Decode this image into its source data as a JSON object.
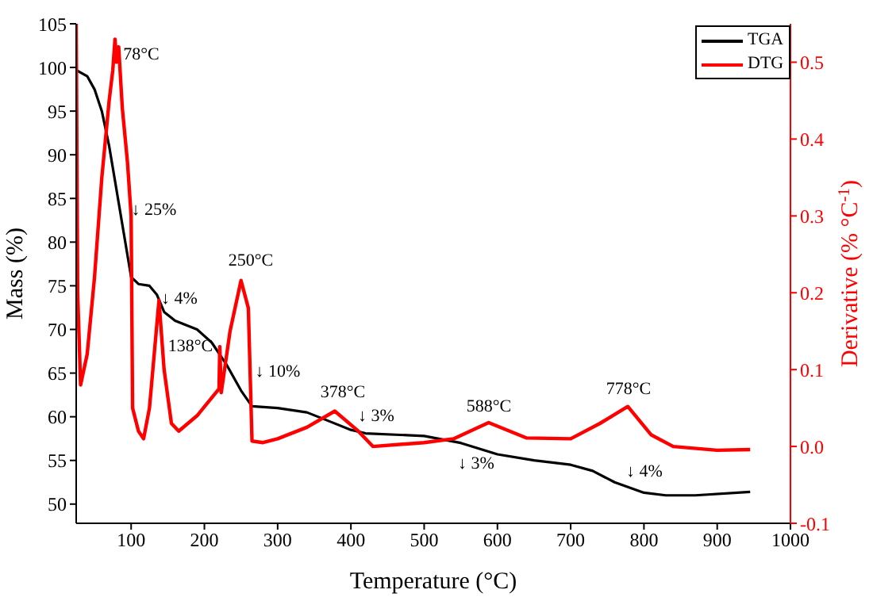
{
  "chart_data": {
    "type": "line",
    "xlabel": "Temperature (°C)",
    "ylabel": "Mass (%)",
    "y2label": "Derivative (% °C$^{-1}$)",
    "xlim": [
      25,
      1000
    ],
    "xticks": [
      100,
      200,
      300,
      400,
      500,
      600,
      700,
      800,
      900,
      1000
    ],
    "ylim": [
      47.8,
      105
    ],
    "yticks": [
      50,
      55,
      60,
      65,
      70,
      75,
      80,
      85,
      90,
      95,
      100,
      105
    ],
    "y2lim": [
      -0.1,
      0.55
    ],
    "y2ticks": [
      -0.1,
      {
        "value": 0,
        "label": "0.0"
      },
      0.1,
      0.2,
      0.3,
      0.4,
      0.5
    ],
    "legend": "top right",
    "grid": false,
    "marker": "none",
    "line_style": "solid",
    "series": [
      {
        "name": "TGA",
        "color": "#000000",
        "x": [
          25,
          40,
          50,
          60,
          70,
          80,
          90,
          100,
          110,
          125,
          135,
          145,
          160,
          190,
          210,
          230,
          250,
          265,
          300,
          340,
          370,
          400,
          420,
          500,
          550,
          600,
          650,
          700,
          730,
          760,
          800,
          830,
          870,
          945
        ],
        "values": [
          99.7,
          99,
          97.5,
          95,
          91,
          86,
          81,
          76,
          75.2,
          75,
          74,
          72,
          71,
          70,
          68.5,
          66,
          63,
          61.2,
          61,
          60.5,
          59.5,
          58.5,
          58.1,
          57.8,
          57,
          55.7,
          55,
          54.5,
          53.8,
          52.5,
          51.3,
          51,
          51,
          51.4
        ]
      },
      {
        "name": "DTG",
        "color": "#ff0000",
        "axis": "y2",
        "x": [
          25,
          27,
          31,
          40,
          50,
          60,
          70,
          75,
          78,
          80,
          83,
          88,
          95,
          100,
          102,
          110,
          117,
          125,
          138,
          145,
          155,
          165,
          190,
          220,
          221,
          223,
          235,
          250,
          260,
          265,
          280,
          300,
          340,
          378,
          410,
          430,
          500,
          540,
          588,
          640,
          700,
          740,
          778,
          810,
          840,
          900,
          945
        ],
        "values": [
          0.55,
          0.2,
          0.08,
          0.12,
          0.22,
          0.35,
          0.45,
          0.49,
          0.53,
          0.5,
          0.52,
          0.44,
          0.37,
          0.3,
          0.05,
          0.02,
          0.01,
          0.05,
          0.19,
          0.1,
          0.03,
          0.02,
          0.04,
          0.075,
          0.13,
          0.07,
          0.15,
          0.216,
          0.18,
          0.007,
          0.005,
          0.01,
          0.025,
          0.046,
          0.02,
          0.0,
          0.005,
          0.01,
          0.031,
          0.011,
          0.01,
          0.03,
          0.052,
          0.015,
          0.0,
          -0.005,
          -0.004
        ]
      }
    ],
    "annotations": [
      "78°C",
      "↓ 25%",
      "250°C",
      "↓ 4%",
      "138°C",
      "↓ 10%",
      "378°C",
      "↓ 3%",
      "588°C",
      "↓ 3%",
      "778°C",
      "↓ 4%"
    ]
  }
}
